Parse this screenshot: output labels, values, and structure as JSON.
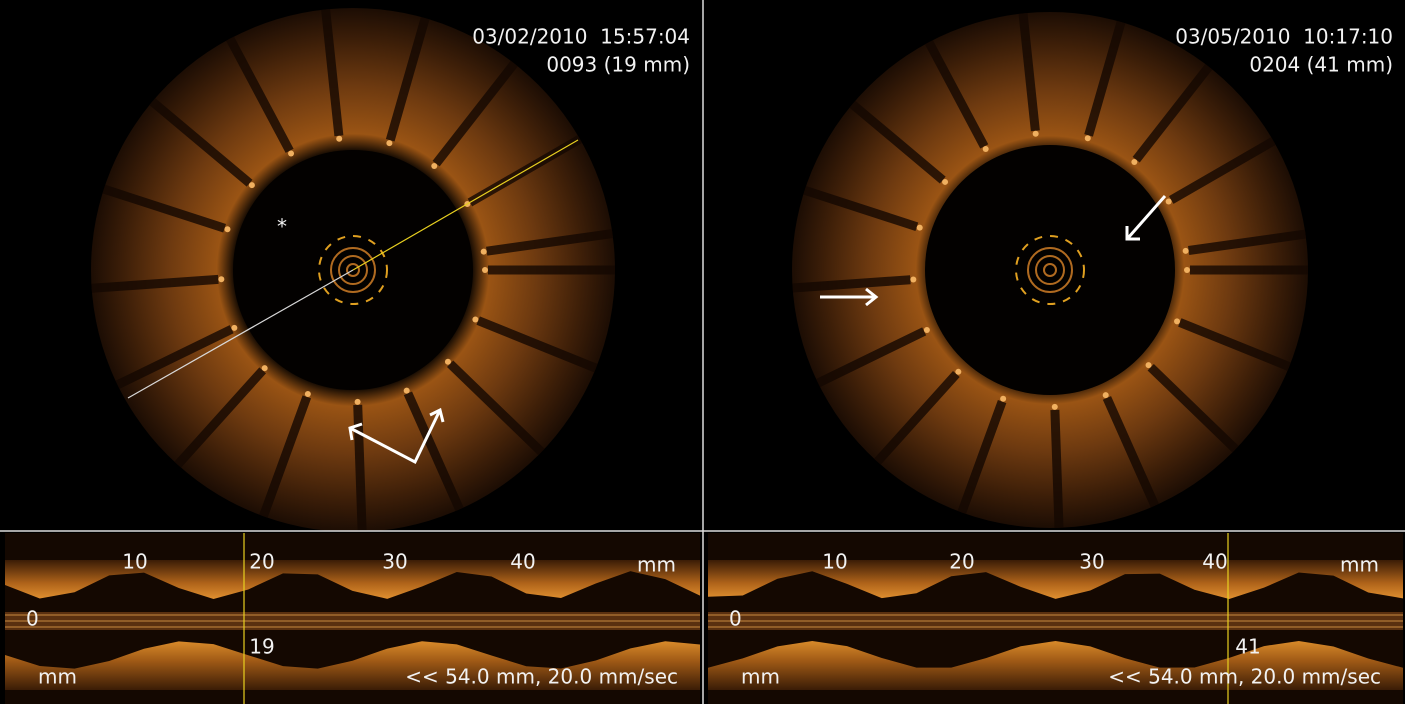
{
  "panels": [
    {
      "timestamp": "03/02/2010  15:57:04",
      "frame": "0093 (19 mm)",
      "annotation": "*",
      "longitudinal": {
        "scale_labels": [
          "10",
          "20",
          "30",
          "40"
        ],
        "unit_top": "mm",
        "zero": "0",
        "unit_bottom": "mm",
        "marker": "19",
        "playback": "<< 54.0 mm, 20.0 mm/sec"
      }
    },
    {
      "timestamp": "03/05/2010  10:17:10",
      "frame": "0204 (41 mm)",
      "longitudinal": {
        "scale_labels": [
          "10",
          "20",
          "30",
          "40"
        ],
        "unit_top": "mm",
        "zero": "0",
        "unit_bottom": "mm",
        "marker": "41",
        "playback": "<< 54.0 mm, 20.0 mm/sec"
      }
    }
  ]
}
